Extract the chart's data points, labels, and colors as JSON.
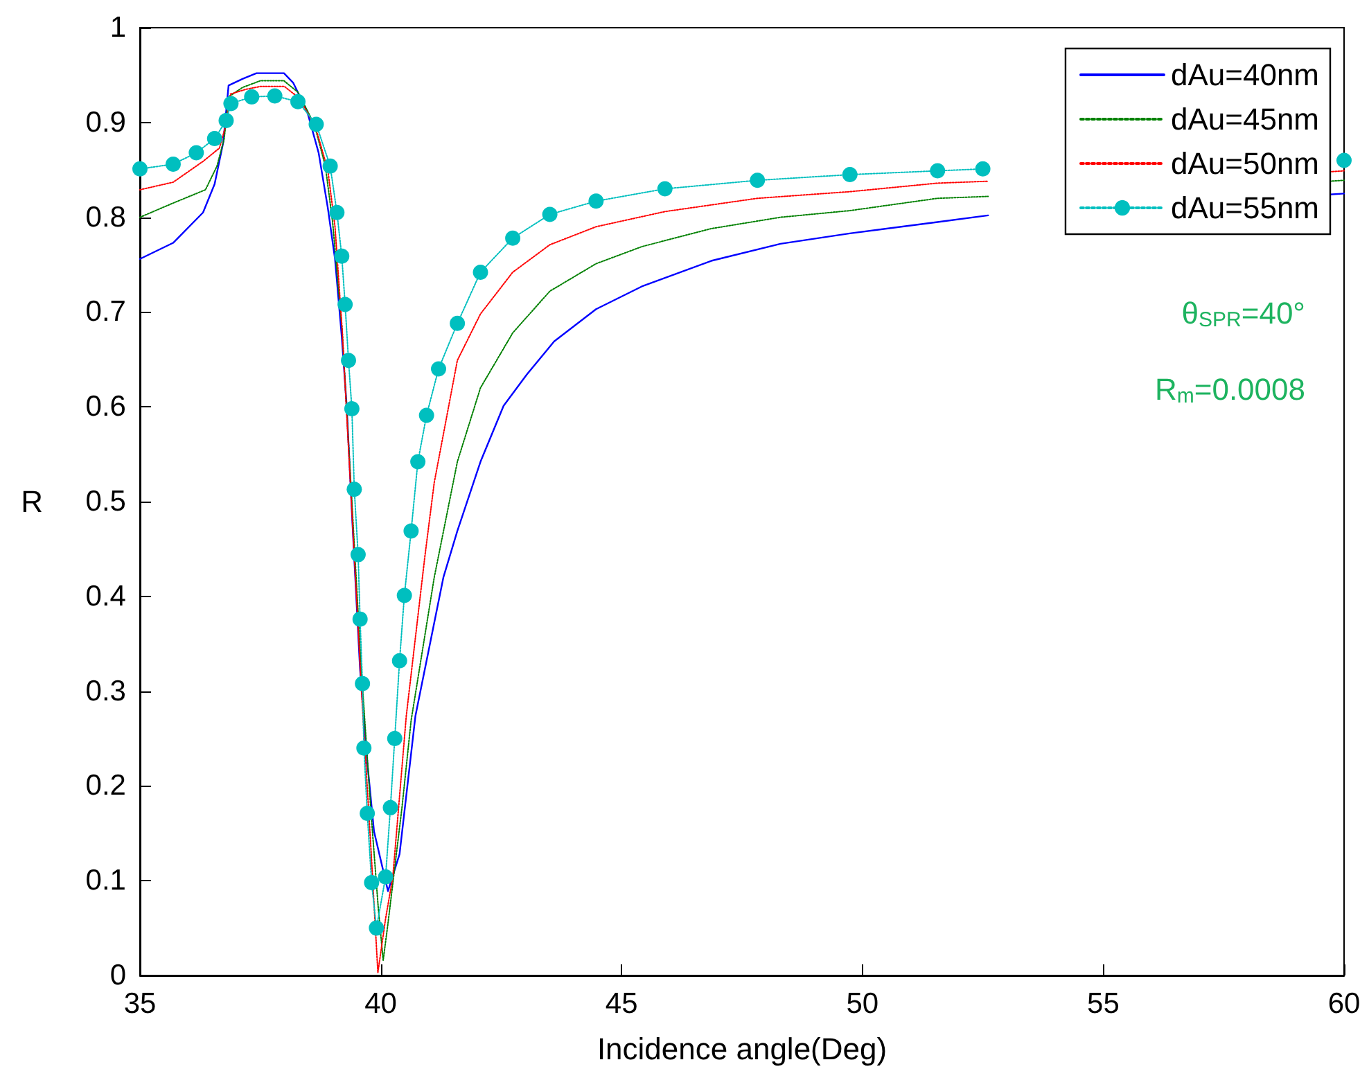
{
  "chart_data": {
    "type": "line",
    "xlabel": "Incidence angle(Deg)",
    "ylabel": "R",
    "xlim": [
      35,
      60
    ],
    "xticks": [
      35,
      40,
      45,
      50,
      55,
      60
    ],
    "ylim": [
      0,
      1
    ],
    "yticks": [
      0,
      0.1,
      0.2,
      0.3,
      0.4,
      0.5,
      0.6,
      0.7,
      0.8,
      0.9,
      1
    ],
    "legend": "top right",
    "annotations": [
      "θ$_{SPR}$=40°",
      "R$_{m}$=0.0008"
    ],
    "series": [
      {
        "name": "dAu=40nm",
        "color": "#0000ff",
        "line_style": "solid",
        "marker": "none",
        "x": [
          35,
          35.69,
          36.31,
          36.55,
          36.73,
          36.84,
          37.13,
          37.42,
          37.99,
          38.18,
          38.47,
          38.71,
          38.9,
          39.05,
          39.19,
          39.29,
          39.42,
          39.57,
          39.72,
          39.86,
          40.15,
          40.39,
          40.72,
          41.3,
          41.59,
          42.07,
          42.55,
          43.03,
          43.6,
          44.47,
          45.42,
          46.86,
          48.3,
          49.74,
          51.56,
          52.61,
          56,
          59.7,
          60
        ],
        "values": [
          0.756,
          0.773,
          0.805,
          0.835,
          0.879,
          0.939,
          0.946,
          0.952,
          0.952,
          0.942,
          0.912,
          0.868,
          0.81,
          0.756,
          0.674,
          0.603,
          0.469,
          0.323,
          0.225,
          0.152,
          0.089,
          0.128,
          0.274,
          0.42,
          0.469,
          0.542,
          0.601,
          0.634,
          0.669,
          0.703,
          0.727,
          0.754,
          0.772,
          0.783,
          0.795,
          0.802,
          null,
          0.824,
          0.825
        ]
      },
      {
        "name": "dAu=45nm",
        "color": "#008000",
        "line_style": "dotted",
        "marker": "none",
        "x": [
          35,
          35.69,
          36.36,
          36.6,
          36.75,
          36.84,
          37.13,
          37.5,
          37.99,
          38.28,
          38.62,
          38.85,
          39.0,
          39.2,
          39.4,
          39.6,
          39.8,
          39.95,
          40.05,
          40.15,
          40.44,
          40.63,
          41.11,
          41.59,
          42.07,
          42.74,
          43.51,
          44.47,
          45.42,
          46.86,
          48.3,
          49.74,
          51.56,
          52.61,
          56,
          59.7,
          60
        ],
        "values": [
          0.8,
          0.815,
          0.829,
          0.854,
          0.883,
          0.927,
          0.937,
          0.944,
          0.944,
          0.932,
          0.898,
          0.854,
          0.795,
          0.68,
          0.5,
          0.32,
          0.17,
          0.07,
          0.016,
          0.055,
          0.177,
          0.269,
          0.42,
          0.542,
          0.62,
          0.678,
          0.722,
          0.751,
          0.769,
          0.788,
          0.8,
          0.807,
          0.82,
          0.822,
          null,
          0.838,
          0.839
        ]
      },
      {
        "name": "dAu=50nm",
        "color": "#ff0000",
        "line_style": "dotted",
        "marker": "none",
        "x": [
          35,
          35.69,
          36.31,
          36.65,
          36.8,
          36.88,
          37.2,
          37.5,
          38.0,
          38.3,
          38.64,
          38.9,
          39.05,
          39.2,
          39.4,
          39.6,
          39.8,
          39.94,
          40.1,
          40.25,
          40.53,
          40.92,
          41.11,
          41.59,
          42.07,
          42.74,
          43.51,
          44.47,
          45.9,
          47.82,
          49.74,
          51.56,
          52.61,
          56,
          59.7,
          60
        ],
        "values": [
          0.829,
          0.837,
          0.859,
          0.873,
          0.9,
          0.93,
          0.935,
          0.938,
          0.938,
          0.926,
          0.896,
          0.85,
          0.79,
          0.68,
          0.49,
          0.3,
          0.13,
          0.003,
          0.06,
          0.104,
          0.274,
          0.444,
          0.52,
          0.649,
          0.698,
          0.742,
          0.771,
          0.79,
          0.806,
          0.82,
          0.827,
          0.836,
          0.838,
          null,
          0.848,
          0.849
        ]
      },
      {
        "name": "dAu=55nm",
        "color": "#00bfbf",
        "line_style": "dotted",
        "marker": "circle",
        "x": [
          35,
          35.69,
          36.17,
          36.55,
          36.79,
          36.89,
          37.32,
          37.8,
          38.28,
          38.66,
          38.95,
          39.09,
          39.19,
          39.26,
          39.33,
          39.4,
          39.45,
          39.53,
          39.57,
          39.62,
          39.65,
          39.72,
          39.81,
          39.91,
          40.1,
          40.2,
          40.29,
          40.39,
          40.49,
          40.63,
          40.77,
          40.95,
          41.2,
          41.59,
          42.07,
          42.74,
          43.51,
          44.47,
          45.9,
          47.82,
          49.74,
          51.56,
          52.5,
          56,
          60
        ],
        "values": [
          0.851,
          0.856,
          0.868,
          0.883,
          0.902,
          0.92,
          0.927,
          0.928,
          0.922,
          0.898,
          0.854,
          0.805,
          0.759,
          0.708,
          0.649,
          0.598,
          0.513,
          0.444,
          0.376,
          0.308,
          0.24,
          0.171,
          0.098,
          0.05,
          0.104,
          0.177,
          0.25,
          0.332,
          0.401,
          0.469,
          0.542,
          0.591,
          0.64,
          0.688,
          0.742,
          0.778,
          0.803,
          0.817,
          0.83,
          0.839,
          0.845,
          0.849,
          0.851,
          null,
          0.86
        ]
      }
    ]
  }
}
